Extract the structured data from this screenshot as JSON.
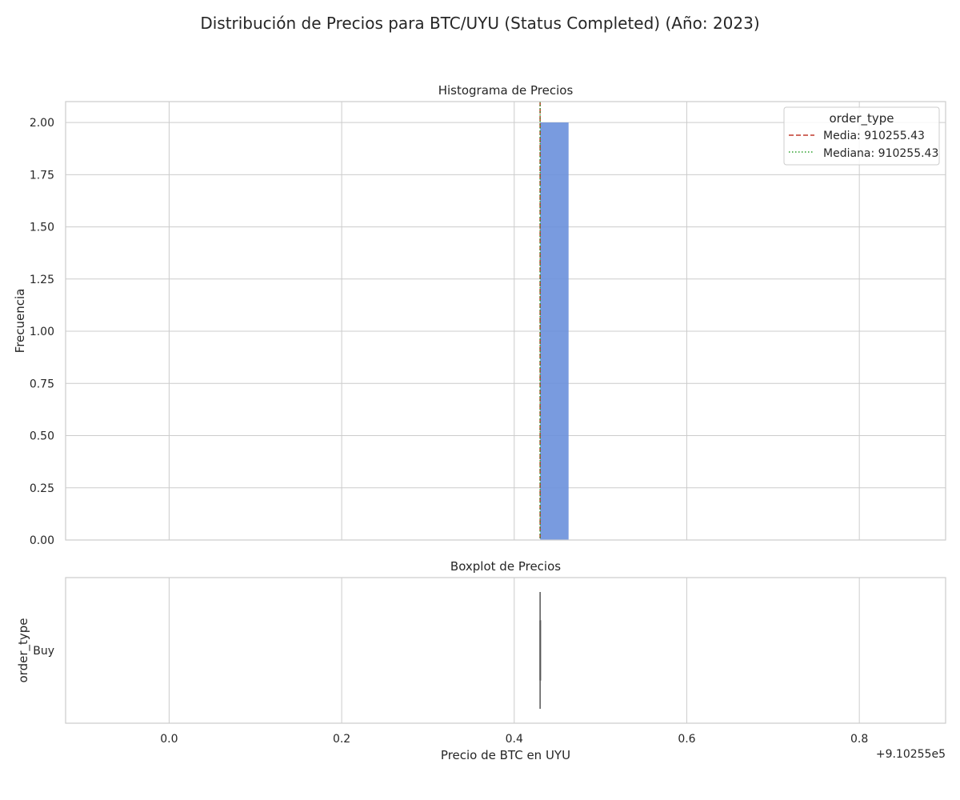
{
  "figure_title": "Distribución de Precios para BTC/UYU (Status Completed) (Año: 2023)",
  "colors": {
    "bar": "#6a90db",
    "mean_line": "#c0392b",
    "median_line": "#2ca02c",
    "grid": "#cccccc",
    "box": "#555555"
  },
  "chart_data": [
    {
      "type": "histogram",
      "title": "Histograma de Precios",
      "xlabel": "",
      "ylabel": "Frecuencia",
      "x_offset_label": "+9.10255e5",
      "x_offset": 910255,
      "xlim": [
        -0.12,
        0.9
      ],
      "ylim": [
        0,
        2.1
      ],
      "x_ticks": [
        0.0,
        0.2,
        0.4,
        0.6,
        0.8
      ],
      "y_ticks": [
        0.0,
        0.25,
        0.5,
        0.75,
        1.0,
        1.25,
        1.5,
        1.75,
        2.0
      ],
      "y_tick_labels": [
        "0.00",
        "0.25",
        "0.50",
        "0.75",
        "1.00",
        "1.25",
        "1.50",
        "1.75",
        "2.00"
      ],
      "bins": [
        {
          "x_start": 910255.43,
          "x_end": 910255.463,
          "count": 2
        }
      ],
      "lines": [
        {
          "label": "Media: 910255.43",
          "x": 910255.43,
          "style": "dashed"
        },
        {
          "label": "Mediana: 910255.43",
          "x": 910255.43,
          "style": "dotted"
        }
      ],
      "legend": {
        "title": "order_type",
        "placement": "top-right",
        "entries": [
          "Media: 910255.43",
          "Mediana: 910255.43"
        ]
      },
      "grid": true
    },
    {
      "type": "boxplot",
      "title": "Boxplot de Precios",
      "xlabel": "Precio de BTC en UYU",
      "ylabel": "order_type",
      "x_tick_labels": [
        "0.0",
        "0.2",
        "0.4",
        "0.6",
        "0.8"
      ],
      "categories": [
        "Buy"
      ],
      "stats": [
        {
          "category": "Buy",
          "min": 910255.43,
          "q1": 910255.43,
          "median": 910255.43,
          "q3": 910255.43,
          "max": 910255.43
        }
      ],
      "grid": true
    }
  ]
}
